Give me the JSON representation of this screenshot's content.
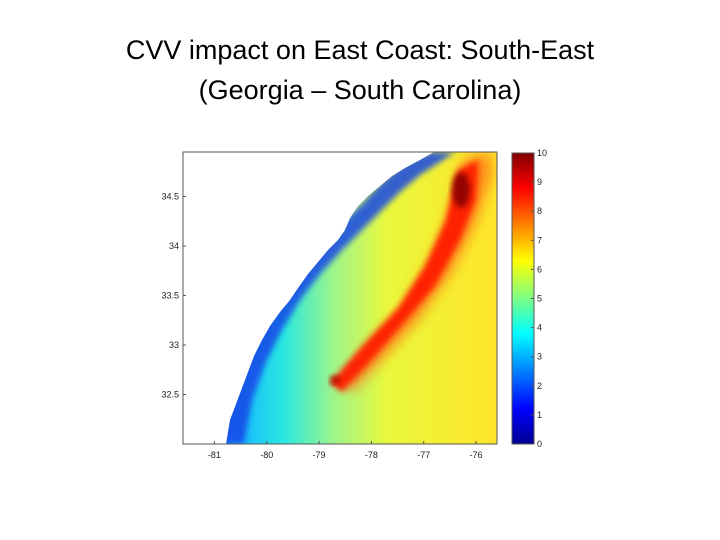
{
  "slide": {
    "title_line1": "CVV impact on East Coast: South-East",
    "title_line2": "(Georgia – South Carolina)"
  },
  "map": {
    "x_ticks": [
      "-81",
      "-80",
      "-79",
      "-78",
      "-77",
      "-76"
    ],
    "y_ticks": [
      "34.5",
      "34",
      "33.5",
      "33",
      "32.5"
    ],
    "x_range": [
      -81.6,
      -75.6
    ],
    "y_range": [
      32.0,
      34.95
    ],
    "colorbar": {
      "ticks": [
        "10",
        "9",
        "8",
        "7",
        "6",
        "5",
        "4",
        "3",
        "2",
        "1",
        "0"
      ],
      "range": [
        0,
        10
      ]
    }
  }
}
